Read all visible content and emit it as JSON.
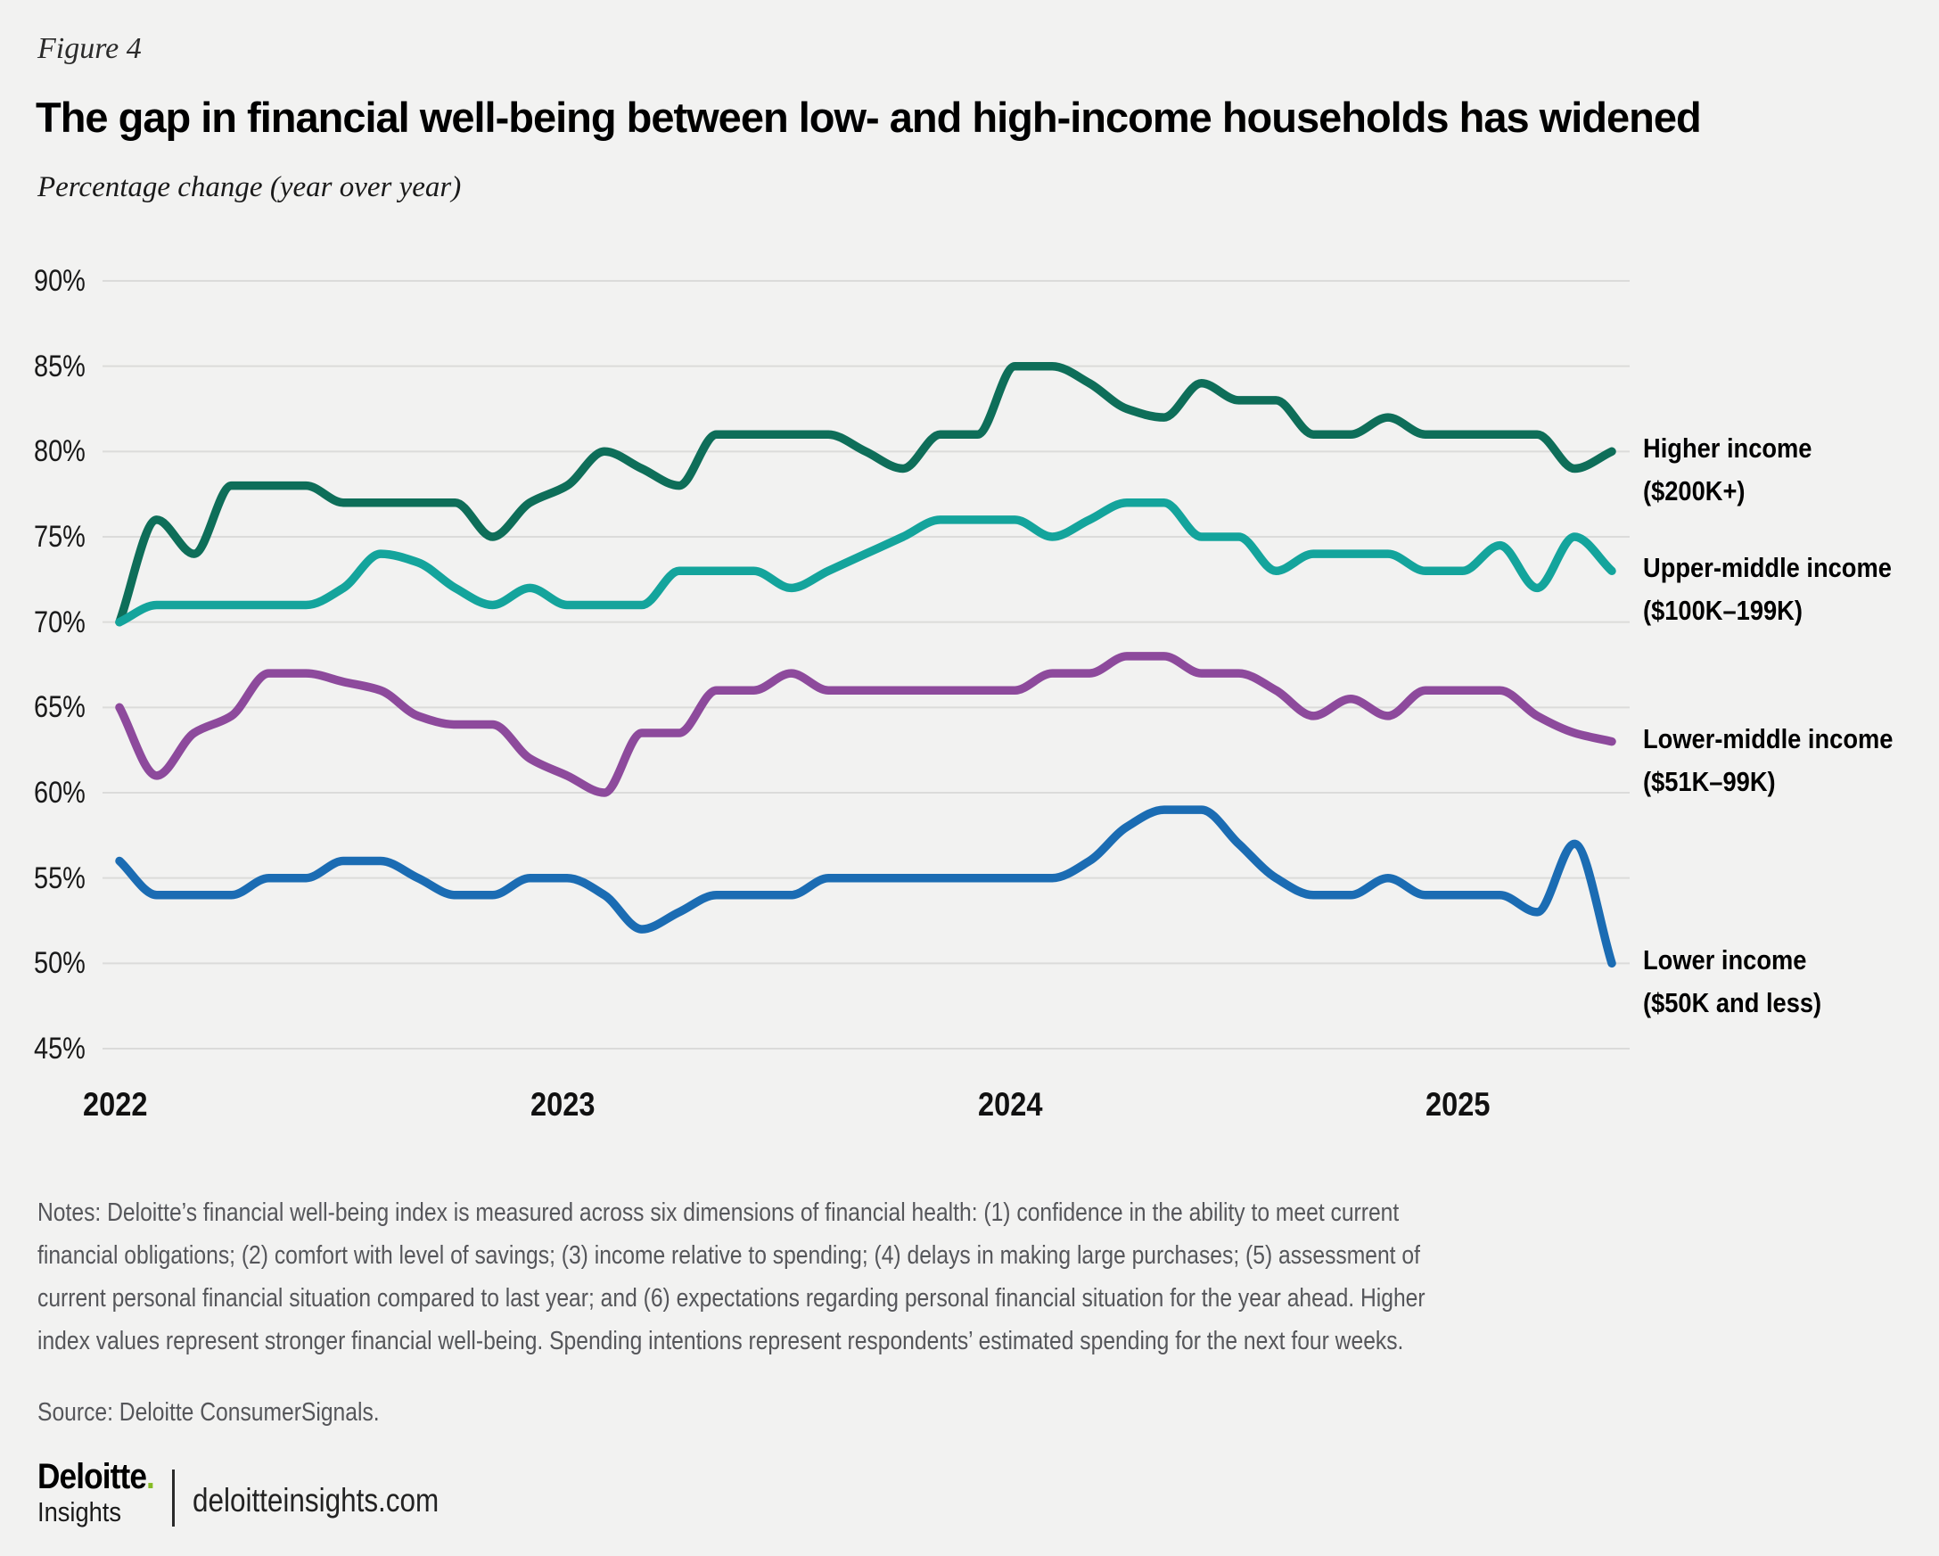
{
  "figure_label": "Figure 4",
  "title": "The gap in financial well-being between low- and high-income households has widened",
  "subtitle": "Percentage change (year over year)",
  "notes": {
    "lines": [
      "Notes: Deloitte’s financial well-being index is measured across six dimensions of financial health: (1) confidence in the ability to meet current",
      "financial obligations; (2) comfort with level of savings; (3) income relative to spending; (4) delays in making large purchases; (5) assessment of",
      "current personal financial situation compared to last year; and (6) expectations regarding personal financial situation for the year ahead. Higher",
      "index values represent stronger financial well-being. Spending intentions represent respondents’ estimated spending for the next four weeks."
    ]
  },
  "source": "Source: Deloitte ConsumerSignals.",
  "footer": {
    "brand": "Deloitte",
    "brand_dot": ".",
    "brand_sub": "Insights",
    "site": "deloitteinsights.com"
  },
  "colors": {
    "background": "#f2f2f1",
    "gridline": "#dbdbda",
    "notes_gray": "#55565a",
    "deloitte_green": "#86bc25"
  },
  "chart_data": {
    "type": "line",
    "title": "The gap in financial well-being between low- and high-income households has widened",
    "ylabel": "Percentage change (year over year)",
    "ylim": [
      45,
      90
    ],
    "yticks": [
      90,
      85,
      80,
      75,
      70,
      65,
      60,
      55,
      50,
      45
    ],
    "ytick_labels": [
      "90%",
      "85%",
      "80%",
      "75%",
      "70%",
      "65%",
      "60%",
      "55%",
      "50%",
      "45%"
    ],
    "grid": true,
    "legend_position": "right of line ends",
    "xtick_labels": [
      "2022",
      "2023",
      "2024",
      "2025"
    ],
    "x_months": [
      "2022-01",
      "2022-02",
      "2022-03",
      "2022-04",
      "2022-05",
      "2022-06",
      "2022-07",
      "2022-08",
      "2022-09",
      "2022-10",
      "2022-11",
      "2022-12",
      "2023-01",
      "2023-02",
      "2023-03",
      "2023-04",
      "2023-05",
      "2023-06",
      "2023-07",
      "2023-08",
      "2023-09",
      "2023-10",
      "2023-11",
      "2023-12",
      "2024-01",
      "2024-02",
      "2024-03",
      "2024-04",
      "2024-05",
      "2024-06",
      "2024-07",
      "2024-08",
      "2024-09",
      "2024-10",
      "2024-11",
      "2024-12",
      "2025-01",
      "2025-02",
      "2025-03",
      "2025-04",
      "2025-05"
    ],
    "series": [
      {
        "name": "Higher income ($200K+)",
        "label_lines": [
          "Higher income",
          "($200K+)"
        ],
        "color": "#0e6e59",
        "values": [
          70,
          76,
          74,
          78,
          78,
          78,
          77,
          77,
          77,
          77,
          75,
          77,
          78,
          80,
          79,
          78,
          81,
          81,
          81,
          81,
          80,
          79,
          81,
          81,
          85,
          85,
          84,
          82.5,
          82,
          84,
          83,
          83,
          81,
          81,
          82,
          81,
          81,
          81,
          81,
          79,
          80
        ]
      },
      {
        "name": "Upper-middle income ($100K–199K)",
        "label_lines": [
          "Upper-middle income",
          "($100K–199K)"
        ],
        "color": "#14a49c",
        "values": [
          70,
          71,
          71,
          71,
          71,
          71,
          72,
          74,
          73.5,
          72,
          71,
          72,
          71,
          71,
          71,
          73,
          73,
          73,
          72,
          73,
          74,
          75,
          76,
          76,
          76,
          75,
          76,
          77,
          77,
          75,
          75,
          73,
          74,
          74,
          74,
          73,
          73,
          74.5,
          72,
          75,
          73
        ]
      },
      {
        "name": "Lower-middle income ($51K–99K)",
        "label_lines": [
          "Lower-middle income",
          "($51K–99K)"
        ],
        "color": "#8d4a9c",
        "values": [
          65,
          61,
          63.5,
          64.5,
          67,
          67,
          66.5,
          66,
          64.5,
          64,
          64,
          62,
          61,
          60,
          63.5,
          63.5,
          66,
          66,
          67,
          66,
          66,
          66,
          66,
          66,
          66,
          67,
          67,
          68,
          68,
          67,
          67,
          66,
          64.5,
          65.5,
          64.5,
          66,
          66,
          66,
          64.5,
          63.5,
          63
        ]
      },
      {
        "name": "Lower income ($50K and less)",
        "label_lines": [
          "Lower income",
          "($50K and less)"
        ],
        "color": "#1b6cb3",
        "values": [
          56,
          54,
          54,
          54,
          55,
          55,
          56,
          56,
          55,
          54,
          54,
          55,
          55,
          54,
          52,
          53,
          54,
          54,
          54,
          55,
          55,
          55,
          55,
          55,
          55,
          55,
          56,
          58,
          59,
          59,
          57,
          55,
          54,
          54,
          55,
          54,
          54,
          54,
          53,
          57,
          50
        ]
      }
    ]
  }
}
